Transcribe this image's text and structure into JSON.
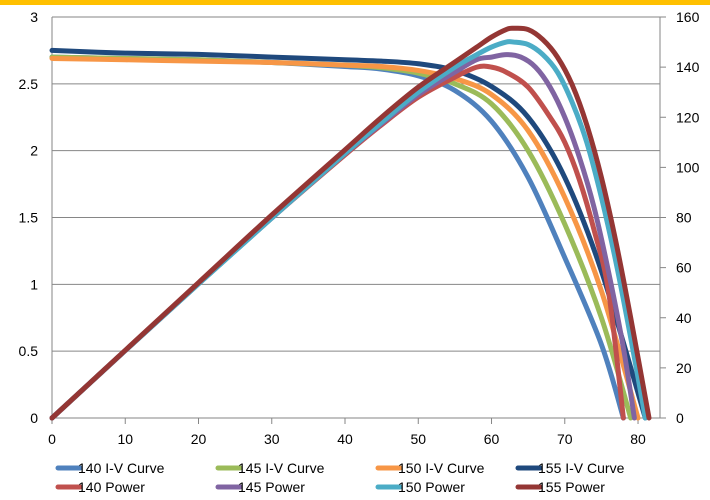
{
  "chart_data": {
    "type": "line",
    "title": "",
    "xlabel": "",
    "ylabel": "",
    "y2label": "",
    "xlim": [
      0,
      80
    ],
    "ylim": [
      0,
      3
    ],
    "y2lim": [
      0,
      160
    ],
    "x_ticks": [
      "0",
      "10",
      "20",
      "30",
      "40",
      "50",
      "60",
      "70",
      "80"
    ],
    "y_ticks": [
      "0",
      "0.5",
      "1",
      "1.5",
      "2",
      "2.5",
      "3"
    ],
    "y2_ticks": [
      "0",
      "20",
      "40",
      "60",
      "80",
      "100",
      "120",
      "140",
      "160"
    ],
    "grid": "horizontal",
    "legend_position": "bottom",
    "top_bar_color": "#FFC000",
    "series": [
      {
        "name": "140 I-V Curve",
        "axis": "left",
        "color": "#4F81BD",
        "points": [
          [
            0,
            2.7
          ],
          [
            10,
            2.69
          ],
          [
            20,
            2.68
          ],
          [
            30,
            2.66
          ],
          [
            40,
            2.63
          ],
          [
            45,
            2.61
          ],
          [
            50,
            2.56
          ],
          [
            55,
            2.45
          ],
          [
            60,
            2.22
          ],
          [
            65,
            1.8
          ],
          [
            70,
            1.2
          ],
          [
            75,
            0.55
          ],
          [
            78,
            0.0
          ]
        ]
      },
      {
        "name": "145 I-V Curve",
        "axis": "left",
        "color": "#9BBB59",
        "points": [
          [
            0,
            2.7
          ],
          [
            10,
            2.69
          ],
          [
            20,
            2.68
          ],
          [
            30,
            2.66
          ],
          [
            40,
            2.64
          ],
          [
            45,
            2.62
          ],
          [
            50,
            2.58
          ],
          [
            55,
            2.5
          ],
          [
            60,
            2.35
          ],
          [
            65,
            2.0
          ],
          [
            70,
            1.45
          ],
          [
            75,
            0.75
          ],
          [
            79,
            0.0
          ]
        ]
      },
      {
        "name": "150 I-V Curve",
        "axis": "left",
        "color": "#F79646",
        "points": [
          [
            0,
            2.69
          ],
          [
            10,
            2.68
          ],
          [
            20,
            2.67
          ],
          [
            30,
            2.66
          ],
          [
            40,
            2.64
          ],
          [
            45,
            2.63
          ],
          [
            50,
            2.6
          ],
          [
            55,
            2.54
          ],
          [
            60,
            2.42
          ],
          [
            65,
            2.15
          ],
          [
            70,
            1.65
          ],
          [
            75,
            0.95
          ],
          [
            80,
            0.0
          ]
        ]
      },
      {
        "name": "155 I-V Curve",
        "axis": "left",
        "color": "#1F497D",
        "points": [
          [
            0,
            2.75
          ],
          [
            10,
            2.73
          ],
          [
            20,
            2.72
          ],
          [
            30,
            2.7
          ],
          [
            40,
            2.68
          ],
          [
            45,
            2.67
          ],
          [
            50,
            2.65
          ],
          [
            55,
            2.6
          ],
          [
            60,
            2.48
          ],
          [
            65,
            2.25
          ],
          [
            70,
            1.8
          ],
          [
            75,
            1.1
          ],
          [
            81,
            0.0
          ]
        ]
      },
      {
        "name": "140 Power",
        "axis": "right",
        "color": "#C0504D",
        "points": [
          [
            0,
            0
          ],
          [
            10,
            26.9
          ],
          [
            20,
            53.6
          ],
          [
            30,
            79.8
          ],
          [
            40,
            105
          ],
          [
            45,
            117
          ],
          [
            50,
            128
          ],
          [
            55,
            136
          ],
          [
            58,
            140
          ],
          [
            60,
            140
          ],
          [
            62,
            138
          ],
          [
            65,
            132
          ],
          [
            68,
            120
          ],
          [
            70,
            110
          ],
          [
            72,
            95
          ],
          [
            74,
            75
          ],
          [
            76,
            50
          ],
          [
            78,
            0
          ]
        ]
      },
      {
        "name": "145 Power",
        "axis": "right",
        "color": "#8064A2",
        "points": [
          [
            0,
            0
          ],
          [
            10,
            26.9
          ],
          [
            20,
            53.6
          ],
          [
            30,
            79.8
          ],
          [
            40,
            105.5
          ],
          [
            45,
            117.5
          ],
          [
            50,
            129
          ],
          [
            55,
            138
          ],
          [
            58,
            143
          ],
          [
            60,
            144
          ],
          [
            62,
            145
          ],
          [
            64,
            144
          ],
          [
            66,
            140
          ],
          [
            68,
            132
          ],
          [
            70,
            120
          ],
          [
            72,
            104
          ],
          [
            74,
            84
          ],
          [
            76,
            58
          ],
          [
            78,
            28
          ],
          [
            79.5,
            0
          ]
        ]
      },
      {
        "name": "150 Power",
        "axis": "right",
        "color": "#4BACC6",
        "points": [
          [
            0,
            0
          ],
          [
            10,
            26.9
          ],
          [
            20,
            53.5
          ],
          [
            30,
            79.8
          ],
          [
            40,
            105.6
          ],
          [
            45,
            118
          ],
          [
            50,
            130
          ],
          [
            55,
            140
          ],
          [
            58,
            145
          ],
          [
            60,
            148
          ],
          [
            62,
            150
          ],
          [
            63,
            150
          ],
          [
            65,
            149
          ],
          [
            67,
            145
          ],
          [
            69,
            138
          ],
          [
            71,
            126
          ],
          [
            73,
            110
          ],
          [
            75,
            88
          ],
          [
            77,
            62
          ],
          [
            79,
            32
          ],
          [
            81,
            0
          ]
        ]
      },
      {
        "name": "155 Power",
        "axis": "right",
        "color": "#943634",
        "points": [
          [
            0,
            0
          ],
          [
            10,
            27
          ],
          [
            20,
            54
          ],
          [
            30,
            81
          ],
          [
            40,
            107
          ],
          [
            45,
            120
          ],
          [
            50,
            132
          ],
          [
            55,
            142
          ],
          [
            58,
            148
          ],
          [
            60,
            152
          ],
          [
            62,
            155
          ],
          [
            63,
            155.5
          ],
          [
            65,
            155
          ],
          [
            67,
            151
          ],
          [
            69,
            144
          ],
          [
            71,
            133
          ],
          [
            73,
            117
          ],
          [
            75,
            96
          ],
          [
            77,
            70
          ],
          [
            79,
            40
          ],
          [
            81.5,
            0
          ]
        ]
      }
    ]
  }
}
